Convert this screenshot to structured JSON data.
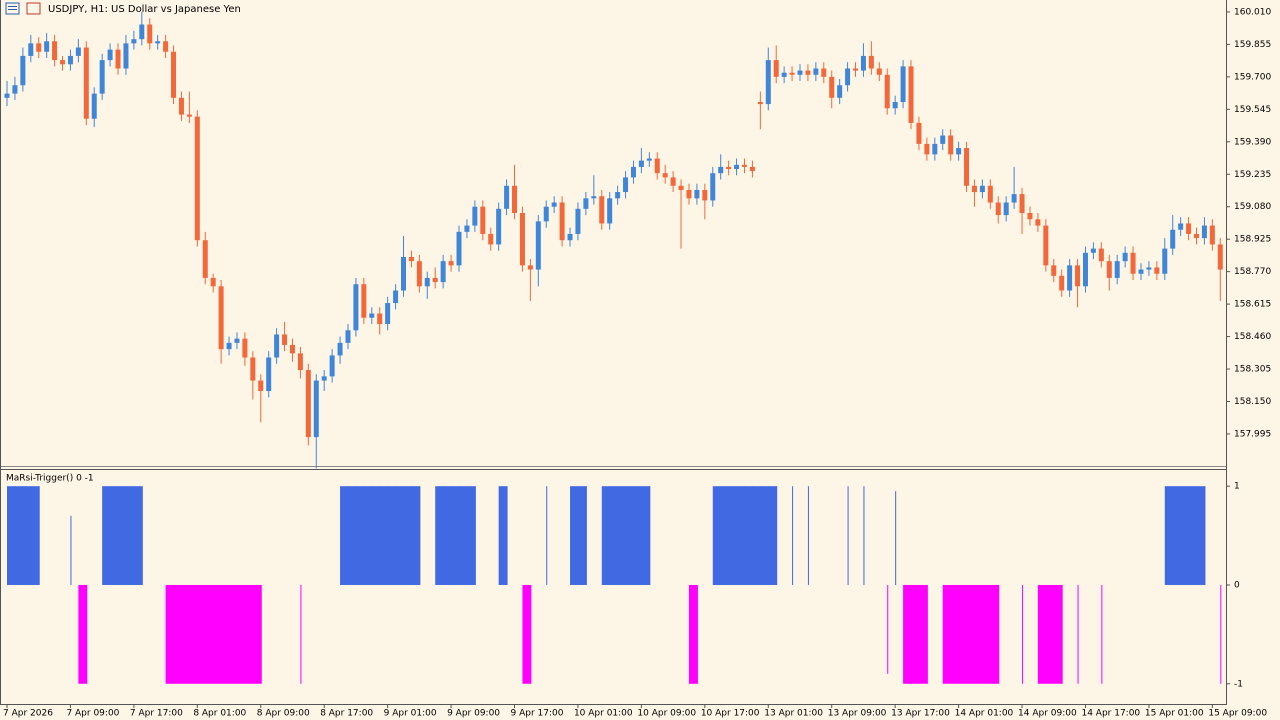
{
  "chart_data": [
    {
      "type": "candlestick",
      "title": "USDJPY, H1:  US Dollar vs Japanese Yen",
      "up_color": "#3f86d8",
      "down_color": "#f2683a",
      "ylim": [
        157.842,
        160.067
      ],
      "yticks": [
        {
          "value": 160.01,
          "label": "160.010"
        },
        159.855,
        {
          "value": 159.7,
          "label": "159.700"
        },
        159.545,
        {
          "value": 159.39,
          "label": "159.390"
        },
        159.235,
        {
          "value": 159.08,
          "label": "159.080"
        },
        158.925,
        {
          "value": 158.77,
          "label": "158.770"
        },
        158.615,
        {
          "value": 158.46,
          "label": "158.460"
        },
        158.305,
        {
          "value": 158.15,
          "label": "158.150"
        },
        157.995
      ],
      "categories": [
        "7 Apr 2026",
        null,
        null,
        null,
        null,
        null,
        null,
        null,
        "7 Apr 09:00",
        null,
        null,
        null,
        null,
        null,
        null,
        null,
        "7 Apr 17:00",
        null,
        null,
        null,
        null,
        null,
        null,
        null,
        "8 Apr 01:00",
        null,
        null,
        null,
        null,
        null,
        null,
        null,
        "8 Apr 09:00",
        null,
        null,
        null,
        null,
        null,
        null,
        null,
        "8 Apr 17:00",
        null,
        null,
        null,
        null,
        null,
        null,
        null,
        "9 Apr 01:00",
        null,
        null,
        null,
        null,
        null,
        null,
        null,
        "9 Apr 09:00",
        null,
        null,
        null,
        null,
        null,
        null,
        null,
        "9 Apr 17:00",
        null,
        null,
        null,
        null,
        null,
        null,
        null,
        "10 Apr 01:00",
        null,
        null,
        null,
        null,
        null,
        null,
        null,
        "10 Apr 09:00",
        null,
        null,
        null,
        null,
        null,
        null,
        null,
        "10 Apr 17:00",
        null,
        null,
        null,
        null,
        null,
        null,
        null,
        "13 Apr 01:00",
        null,
        null,
        null,
        null,
        null,
        null,
        null,
        "13 Apr 09:00",
        null,
        null,
        null,
        null,
        null,
        null,
        null,
        "13 Apr 17:00",
        null,
        null,
        null,
        null,
        null,
        null,
        null,
        "14 Apr 01:00",
        null,
        null,
        null,
        null,
        null,
        null,
        null,
        "14 Apr 09:00",
        null,
        null,
        null,
        null,
        null,
        null,
        null,
        "14 Apr 17:00",
        null,
        null,
        null,
        null,
        null,
        null,
        null,
        "15 Apr 01:00",
        null,
        null,
        null,
        null,
        null,
        null,
        null,
        "15 Apr 09:00",
        null
      ],
      "candles": [
        [
          159.6,
          159.68,
          159.56,
          159.62
        ],
        [
          159.62,
          159.7,
          159.59,
          159.66
        ],
        [
          159.66,
          159.84,
          159.63,
          159.8
        ],
        [
          159.8,
          159.9,
          159.77,
          159.86
        ],
        [
          159.86,
          159.89,
          159.79,
          159.82
        ],
        [
          159.82,
          159.91,
          159.79,
          159.87
        ],
        [
          159.87,
          159.9,
          159.75,
          159.78
        ],
        [
          159.78,
          159.8,
          159.73,
          159.76
        ],
        [
          159.76,
          159.83,
          159.73,
          159.8
        ],
        [
          159.8,
          159.88,
          159.77,
          159.84
        ],
        [
          159.84,
          159.87,
          159.47,
          159.5
        ],
        [
          159.5,
          159.65,
          159.46,
          159.62
        ],
        [
          159.62,
          159.81,
          159.59,
          159.78
        ],
        [
          159.78,
          159.86,
          159.75,
          159.83
        ],
        [
          159.83,
          159.86,
          159.71,
          159.74
        ],
        [
          159.74,
          159.9,
          159.71,
          159.86
        ],
        [
          159.86,
          159.92,
          159.83,
          159.88
        ],
        [
          159.88,
          160.01,
          159.85,
          159.95
        ],
        [
          159.95,
          159.98,
          159.83,
          159.86
        ],
        [
          159.86,
          159.9,
          159.83,
          159.87
        ],
        [
          159.87,
          159.9,
          159.79,
          159.82
        ],
        [
          159.82,
          159.85,
          159.57,
          159.6
        ],
        [
          159.6,
          159.63,
          159.49,
          159.52
        ],
        [
          159.52,
          159.63,
          159.48,
          159.51
        ],
        [
          159.51,
          159.54,
          158.89,
          158.92
        ],
        [
          158.92,
          158.96,
          158.71,
          158.74
        ],
        [
          158.74,
          158.76,
          158.67,
          158.7
        ],
        [
          158.7,
          158.73,
          158.33,
          158.4
        ],
        [
          158.4,
          158.46,
          158.37,
          158.43
        ],
        [
          158.43,
          158.48,
          158.4,
          158.45
        ],
        [
          158.45,
          158.48,
          158.32,
          158.36
        ],
        [
          158.36,
          158.39,
          158.16,
          158.25
        ],
        [
          158.25,
          158.28,
          158.05,
          158.2
        ],
        [
          158.2,
          158.39,
          158.17,
          158.36
        ],
        [
          158.36,
          158.5,
          158.33,
          158.47
        ],
        [
          158.47,
          158.53,
          158.39,
          158.42
        ],
        [
          158.42,
          158.45,
          158.34,
          158.38
        ],
        [
          158.38,
          158.41,
          158.26,
          158.3
        ],
        [
          158.3,
          158.33,
          157.94,
          157.98
        ],
        [
          157.98,
          158.28,
          157.83,
          158.25
        ],
        [
          158.25,
          158.3,
          158.2,
          158.27
        ],
        [
          158.27,
          158.4,
          158.24,
          158.37
        ],
        [
          158.37,
          158.46,
          158.33,
          158.43
        ],
        [
          158.43,
          158.52,
          158.4,
          158.49
        ],
        [
          158.49,
          158.74,
          158.46,
          158.71
        ],
        [
          158.71,
          158.74,
          158.52,
          158.55
        ],
        [
          158.55,
          158.6,
          158.52,
          158.57
        ],
        [
          158.57,
          158.6,
          158.47,
          158.52
        ],
        [
          158.52,
          158.65,
          158.49,
          158.62
        ],
        [
          158.62,
          158.71,
          158.59,
          158.68
        ],
        [
          158.68,
          158.94,
          158.65,
          158.84
        ],
        [
          158.84,
          158.87,
          158.79,
          158.82
        ],
        [
          158.82,
          158.85,
          158.67,
          158.7
        ],
        [
          158.7,
          158.77,
          158.64,
          158.74
        ],
        [
          158.74,
          158.79,
          158.69,
          158.72
        ],
        [
          158.72,
          158.85,
          158.69,
          158.82
        ],
        [
          158.82,
          158.85,
          158.77,
          158.8
        ],
        [
          158.8,
          158.99,
          158.77,
          158.96
        ],
        [
          158.96,
          159.02,
          158.93,
          158.99
        ],
        [
          158.99,
          159.11,
          158.96,
          159.08
        ],
        [
          159.08,
          159.11,
          158.92,
          158.95
        ],
        [
          158.95,
          158.98,
          158.87,
          158.9
        ],
        [
          158.9,
          159.1,
          158.87,
          159.07
        ],
        [
          159.07,
          159.21,
          159.04,
          159.18
        ],
        [
          159.18,
          159.28,
          159.02,
          159.05
        ],
        [
          159.05,
          159.08,
          158.77,
          158.8
        ],
        [
          158.8,
          158.83,
          158.63,
          158.78
        ],
        [
          158.78,
          159.04,
          158.7,
          159.01
        ],
        [
          159.01,
          159.11,
          158.98,
          159.08
        ],
        [
          159.08,
          159.13,
          159.05,
          159.1
        ],
        [
          159.1,
          159.13,
          158.89,
          158.92
        ],
        [
          158.92,
          158.98,
          158.89,
          158.95
        ],
        [
          158.95,
          159.1,
          158.92,
          159.07
        ],
        [
          159.07,
          159.15,
          159.04,
          159.12
        ],
        [
          159.12,
          159.23,
          159.09,
          159.13
        ],
        [
          159.13,
          159.16,
          158.97,
          159.0
        ],
        [
          159.0,
          159.15,
          158.97,
          159.12
        ],
        [
          159.12,
          159.18,
          159.09,
          159.15
        ],
        [
          159.15,
          159.25,
          159.12,
          159.22
        ],
        [
          159.22,
          159.3,
          159.19,
          159.27
        ],
        [
          159.27,
          159.36,
          159.24,
          159.3
        ],
        [
          159.3,
          159.34,
          159.27,
          159.31
        ],
        [
          159.31,
          159.34,
          159.21,
          159.24
        ],
        [
          159.24,
          159.28,
          159.19,
          159.22
        ],
        [
          159.22,
          159.25,
          159.15,
          159.18
        ],
        [
          159.18,
          159.21,
          158.88,
          159.16
        ],
        [
          159.16,
          159.19,
          159.09,
          159.12
        ],
        [
          159.12,
          159.19,
          159.09,
          159.16
        ],
        [
          159.16,
          159.19,
          159.02,
          159.11
        ],
        [
          159.11,
          159.27,
          159.08,
          159.24
        ],
        [
          159.24,
          159.33,
          159.21,
          159.27
        ],
        [
          159.27,
          159.3,
          159.23,
          159.26
        ],
        [
          159.26,
          159.31,
          159.23,
          159.28
        ],
        [
          159.28,
          159.31,
          159.24,
          159.27
        ],
        [
          159.27,
          159.3,
          159.22,
          159.25
        ],
        [
          159.58,
          159.63,
          159.45,
          159.57
        ],
        [
          159.57,
          159.84,
          159.54,
          159.78
        ],
        [
          159.78,
          159.85,
          159.67,
          159.7
        ],
        [
          159.7,
          159.75,
          159.67,
          159.72
        ],
        [
          159.72,
          159.75,
          159.68,
          159.71
        ],
        [
          159.71,
          159.76,
          159.68,
          159.73
        ],
        [
          159.73,
          159.76,
          159.68,
          159.71
        ],
        [
          159.71,
          159.77,
          159.68,
          159.74
        ],
        [
          159.74,
          159.77,
          159.67,
          159.7
        ],
        [
          159.7,
          159.73,
          159.55,
          159.6
        ],
        [
          159.6,
          159.69,
          159.57,
          159.66
        ],
        [
          159.66,
          159.77,
          159.63,
          159.74
        ],
        [
          159.74,
          159.77,
          159.7,
          159.73
        ],
        [
          159.73,
          159.86,
          159.7,
          159.8
        ],
        [
          159.8,
          159.87,
          159.71,
          159.74
        ],
        [
          159.74,
          159.77,
          159.68,
          159.71
        ],
        [
          159.71,
          159.74,
          159.52,
          159.55
        ],
        [
          159.55,
          159.61,
          159.52,
          159.58
        ],
        [
          159.58,
          159.78,
          159.55,
          159.75
        ],
        [
          159.75,
          159.78,
          159.45,
          159.48
        ],
        [
          159.48,
          159.51,
          159.35,
          159.38
        ],
        [
          159.38,
          159.41,
          159.3,
          159.33
        ],
        [
          159.33,
          159.41,
          159.3,
          159.38
        ],
        [
          159.38,
          159.45,
          159.35,
          159.42
        ],
        [
          159.42,
          159.45,
          159.3,
          159.33
        ],
        [
          159.33,
          159.39,
          159.3,
          159.36
        ],
        [
          159.36,
          159.39,
          159.15,
          159.18
        ],
        [
          159.18,
          159.21,
          159.08,
          159.15
        ],
        [
          159.15,
          159.21,
          159.12,
          159.18
        ],
        [
          159.18,
          159.21,
          159.07,
          159.1
        ],
        [
          159.1,
          159.13,
          159.0,
          159.04
        ],
        [
          159.04,
          159.13,
          159.01,
          159.1
        ],
        [
          159.1,
          159.27,
          159.07,
          159.14
        ],
        [
          159.14,
          159.17,
          158.95,
          159.05
        ],
        [
          159.05,
          159.08,
          158.99,
          159.02
        ],
        [
          159.02,
          159.05,
          158.96,
          158.99
        ],
        [
          158.99,
          159.02,
          158.77,
          158.8
        ],
        [
          158.8,
          158.83,
          158.72,
          158.75
        ],
        [
          158.75,
          158.78,
          158.65,
          158.68
        ],
        [
          158.68,
          158.83,
          158.65,
          158.8
        ],
        [
          158.8,
          158.83,
          158.6,
          158.7
        ],
        [
          158.7,
          158.89,
          158.67,
          158.86
        ],
        [
          158.86,
          158.91,
          158.83,
          158.88
        ],
        [
          158.88,
          158.91,
          158.79,
          158.82
        ],
        [
          158.82,
          158.85,
          158.68,
          158.74
        ],
        [
          158.74,
          158.85,
          158.71,
          158.82
        ],
        [
          158.82,
          158.89,
          158.79,
          158.86
        ],
        [
          158.86,
          158.89,
          158.73,
          158.76
        ],
        [
          158.76,
          158.81,
          158.73,
          158.78
        ],
        [
          158.78,
          158.82,
          158.75,
          158.79
        ],
        [
          158.79,
          158.82,
          158.73,
          158.76
        ],
        [
          158.76,
          158.93,
          158.73,
          158.88
        ],
        [
          158.88,
          159.04,
          158.85,
          158.97
        ],
        [
          158.97,
          159.03,
          158.94,
          159.0
        ],
        [
          159.0,
          159.03,
          158.92,
          158.95
        ],
        [
          158.95,
          158.98,
          158.9,
          158.93
        ],
        [
          158.93,
          159.03,
          158.9,
          158.99
        ],
        [
          158.99,
          159.02,
          158.87,
          158.9
        ],
        [
          158.9,
          158.93,
          158.63,
          158.78
        ]
      ]
    },
    {
      "type": "bar",
      "title": "MaRsi-Trigger() 0 -1",
      "positive_color": "#4169e1",
      "negative_color": "#ff00ff",
      "ylim": [
        -1.205,
        1.164
      ],
      "yticks": [
        1,
        0,
        -1
      ],
      "values": [
        1,
        1,
        1,
        1,
        1,
        0,
        0,
        0,
        0.7,
        -1,
        -1,
        0,
        1,
        1,
        1,
        1,
        1,
        1,
        0,
        0,
        -1,
        -1,
        -1,
        -1,
        -1,
        -1,
        -1,
        -1,
        -1,
        -1,
        -1,
        -1,
        -1,
        0,
        0,
        0,
        0,
        -1,
        0,
        0,
        0,
        0,
        1,
        1,
        1,
        1,
        1,
        1,
        1,
        1,
        1,
        1,
        1,
        0,
        1,
        1,
        1,
        1,
        1,
        1,
        0,
        0,
        1,
        1,
        0,
        -1,
        -1,
        0,
        1,
        0,
        0,
        1,
        1,
        1,
        0,
        1,
        1,
        1,
        1,
        1,
        1,
        1,
        0,
        0,
        0,
        0,
        -1,
        -1,
        0,
        1,
        1,
        1,
        1,
        1,
        1,
        1,
        1,
        1,
        0,
        1,
        0,
        1,
        0,
        0,
        0,
        0,
        1,
        0,
        1,
        0,
        0,
        -0.9,
        0.95,
        -1,
        -1,
        -1,
        -1,
        0,
        -1,
        -1,
        -1,
        -1,
        -1,
        -1,
        -1,
        -1,
        0,
        0,
        -1,
        0,
        -1,
        -1,
        -1,
        -1,
        0,
        -1,
        0,
        0,
        -1,
        0,
        0,
        0,
        0,
        0,
        0,
        0,
        1,
        1,
        1,
        1,
        1,
        1,
        0,
        -1
      ]
    }
  ]
}
